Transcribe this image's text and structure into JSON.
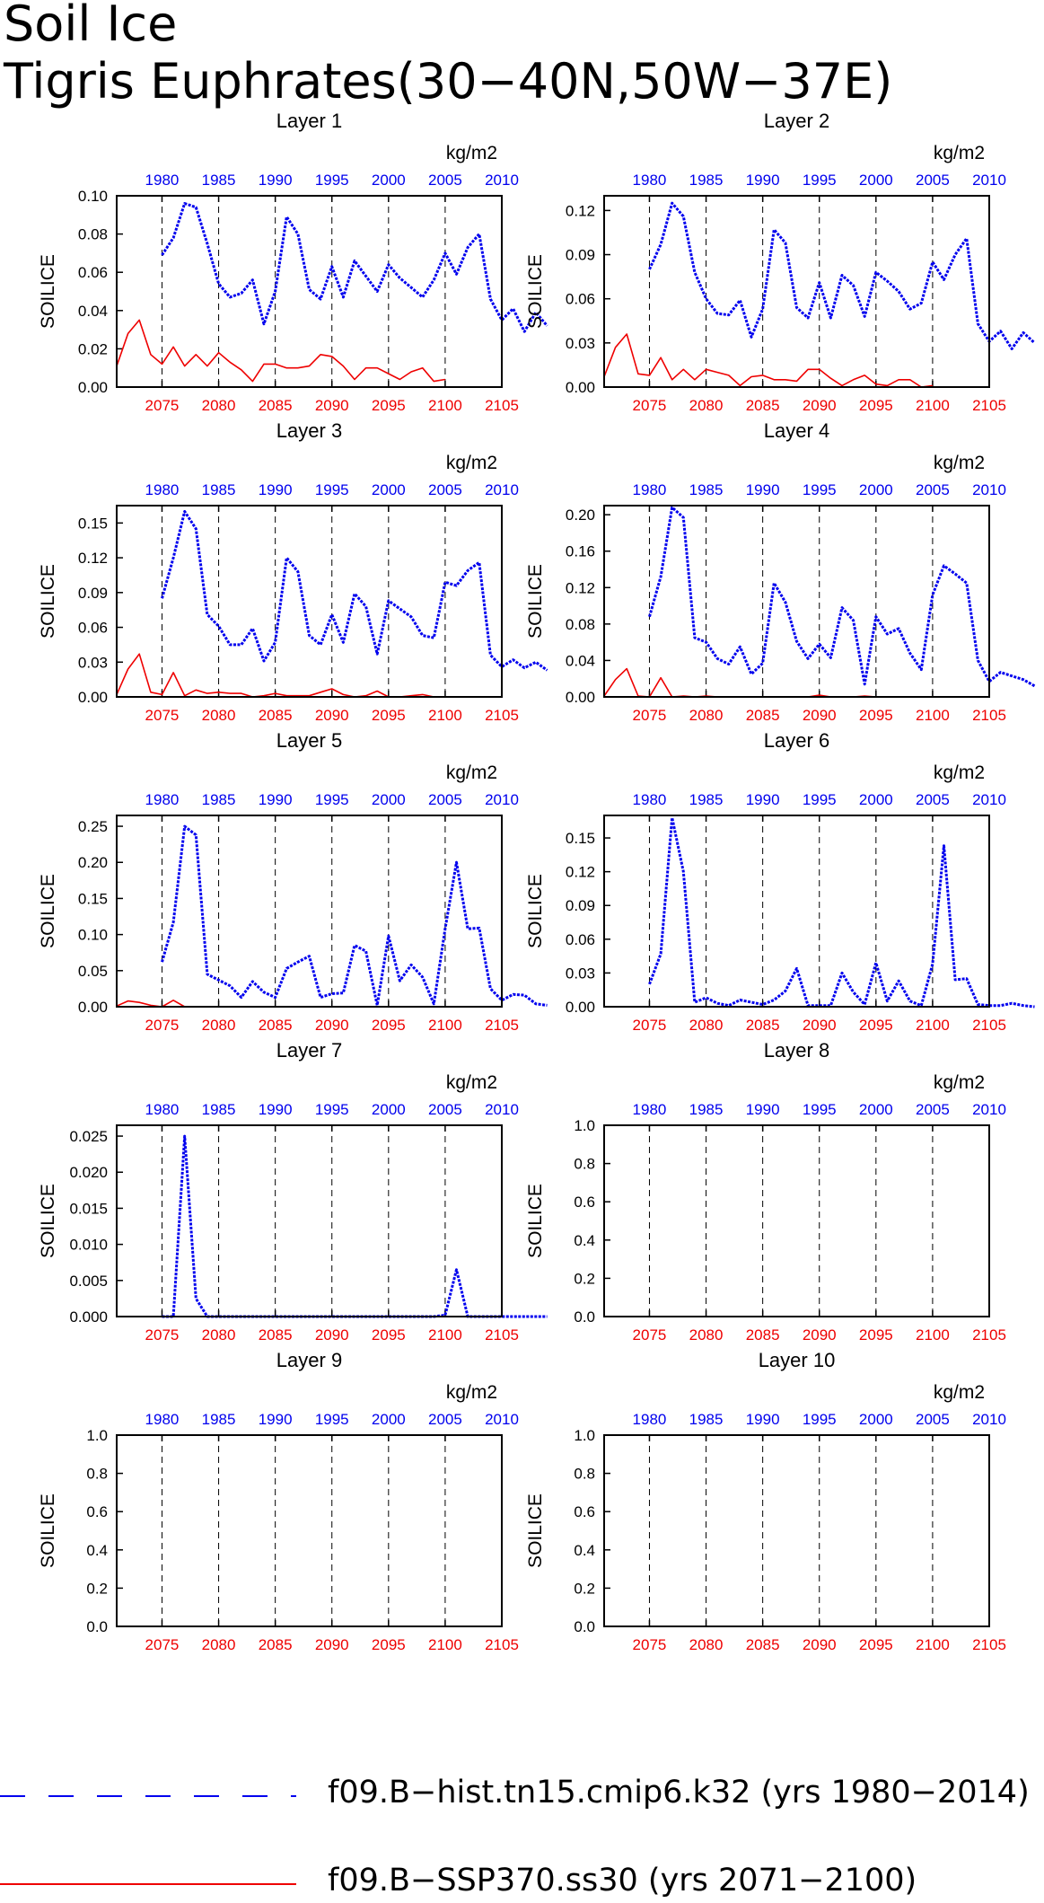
{
  "title_line1": "Soil Ice",
  "title_line2": "Tigris Euphrates(30−40N,50W−37E)",
  "legend": {
    "hist_label": "f09.B−hist.tn15.cmip6.k32 (yrs 1980−2014)",
    "ssp_label": "f09.B−SSP370.ss30 (yrs 2071−2100)",
    "hist_color": "#0000ee",
    "ssp_color": "#ee0000"
  },
  "chart_data": [
    {
      "type": "line",
      "title": "Layer 1",
      "ylabel": "SOILICE",
      "units": "kg/m2",
      "ylim": [
        0,
        0.1
      ],
      "yticks": [
        "0.00",
        "0.02",
        "0.04",
        "0.06",
        "0.08",
        "0.10"
      ],
      "top_axis": {
        "xlim": [
          1976,
          2010
        ],
        "ticks": [
          "1980",
          "1985",
          "1990",
          "1995",
          "2000",
          "2005",
          "2010"
        ]
      },
      "bottom_axis": {
        "xlim": [
          2071,
          2105
        ],
        "ticks": [
          "2075",
          "2080",
          "2085",
          "2090",
          "2095",
          "2100",
          "2105"
        ]
      },
      "series": [
        {
          "name": "f09.B−hist.tn15.cmip6.k32",
          "x_start": 1980,
          "values": [
            0.069,
            0.078,
            0.096,
            0.094,
            0.075,
            0.054,
            0.047,
            0.049,
            0.056,
            0.033,
            0.05,
            0.089,
            0.08,
            0.051,
            0.046,
            0.063,
            0.047,
            0.066,
            0.058,
            0.05,
            0.064,
            0.057,
            0.052,
            0.047,
            0.056,
            0.07,
            0.059,
            0.073,
            0.08,
            0.046,
            0.035,
            0.041,
            0.029,
            0.039,
            0.032
          ]
        },
        {
          "name": "f09.B−SSP370.ss30",
          "x_start": 2071,
          "values": [
            0.011,
            0.028,
            0.035,
            0.017,
            0.012,
            0.021,
            0.011,
            0.017,
            0.011,
            0.018,
            0.013,
            0.009,
            0.003,
            0.012,
            0.012,
            0.01,
            0.01,
            0.011,
            0.017,
            0.016,
            0.011,
            0.004,
            0.01,
            0.01,
            0.007,
            0.004,
            0.008,
            0.01,
            0.003,
            0.004
          ]
        }
      ]
    },
    {
      "type": "line",
      "title": "Layer 2",
      "ylabel": "SOILICE",
      "units": "kg/m2",
      "ylim": [
        0,
        0.13
      ],
      "yticks": [
        "0.00",
        "0.03",
        "0.06",
        "0.09",
        "0.12"
      ],
      "top_axis": {
        "xlim": [
          1976,
          2010
        ],
        "ticks": [
          "1980",
          "1985",
          "1990",
          "1995",
          "2000",
          "2005",
          "2010"
        ]
      },
      "bottom_axis": {
        "xlim": [
          2071,
          2105
        ],
        "ticks": [
          "2075",
          "2080",
          "2085",
          "2090",
          "2095",
          "2100",
          "2105"
        ]
      },
      "series": [
        {
          "name": "f09.B−hist.tn15.cmip6.k32",
          "x_start": 1980,
          "values": [
            0.08,
            0.097,
            0.125,
            0.116,
            0.078,
            0.06,
            0.05,
            0.049,
            0.059,
            0.034,
            0.053,
            0.107,
            0.098,
            0.054,
            0.047,
            0.071,
            0.047,
            0.076,
            0.069,
            0.048,
            0.078,
            0.072,
            0.065,
            0.053,
            0.057,
            0.085,
            0.073,
            0.09,
            0.101,
            0.043,
            0.031,
            0.038,
            0.026,
            0.037,
            0.03
          ]
        },
        {
          "name": "f09.B−SSP370.ss30",
          "x_start": 2071,
          "values": [
            0.007,
            0.027,
            0.036,
            0.009,
            0.008,
            0.02,
            0.005,
            0.012,
            0.005,
            0.012,
            0.01,
            0.008,
            0.001,
            0.007,
            0.008,
            0.005,
            0.005,
            0.004,
            0.012,
            0.012,
            0.006,
            0.001,
            0.005,
            0.008,
            0.002,
            0.001,
            0.005,
            0.005,
            0.0,
            0.001
          ]
        }
      ]
    },
    {
      "type": "line",
      "title": "Layer 3",
      "ylabel": "SOILICE",
      "units": "kg/m2",
      "ylim": [
        0,
        0.165
      ],
      "yticks": [
        "0.00",
        "0.03",
        "0.06",
        "0.09",
        "0.12",
        "0.15"
      ],
      "top_axis": {
        "xlim": [
          1976,
          2010
        ],
        "ticks": [
          "1980",
          "1985",
          "1990",
          "1995",
          "2000",
          "2005",
          "2010"
        ]
      },
      "bottom_axis": {
        "xlim": [
          2071,
          2105
        ],
        "ticks": [
          "2075",
          "2080",
          "2085",
          "2090",
          "2095",
          "2100",
          "2105"
        ]
      },
      "series": [
        {
          "name": "f09.B−hist.tn15.cmip6.k32",
          "x_start": 1980,
          "values": [
            0.085,
            0.12,
            0.16,
            0.145,
            0.071,
            0.061,
            0.045,
            0.045,
            0.059,
            0.031,
            0.047,
            0.12,
            0.108,
            0.053,
            0.045,
            0.071,
            0.047,
            0.089,
            0.078,
            0.037,
            0.083,
            0.076,
            0.069,
            0.053,
            0.051,
            0.099,
            0.096,
            0.109,
            0.116,
            0.036,
            0.026,
            0.032,
            0.025,
            0.03,
            0.023
          ]
        },
        {
          "name": "f09.B−SSP370.ss30",
          "x_start": 2071,
          "values": [
            0.002,
            0.024,
            0.037,
            0.004,
            0.002,
            0.021,
            0.001,
            0.006,
            0.003,
            0.004,
            0.003,
            0.003,
            0.0,
            0.001,
            0.003,
            0.001,
            0.001,
            0.001,
            0.004,
            0.007,
            0.002,
            0.0,
            0.001,
            0.005,
            0.0,
            0.0,
            0.001,
            0.002,
            0.0,
            0.0
          ]
        }
      ]
    },
    {
      "type": "line",
      "title": "Layer 4",
      "ylabel": "SOILICE",
      "units": "kg/m2",
      "ylim": [
        0,
        0.21
      ],
      "yticks": [
        "0.00",
        "0.04",
        "0.08",
        "0.12",
        "0.16",
        "0.20"
      ],
      "top_axis": {
        "xlim": [
          1976,
          2010
        ],
        "ticks": [
          "1980",
          "1985",
          "1990",
          "1995",
          "2000",
          "2005",
          "2010"
        ]
      },
      "bottom_axis": {
        "xlim": [
          2071,
          2105
        ],
        "ticks": [
          "2075",
          "2080",
          "2085",
          "2090",
          "2095",
          "2100",
          "2105"
        ]
      },
      "series": [
        {
          "name": "f09.B−hist.tn15.cmip6.k32",
          "x_start": 1980,
          "values": [
            0.088,
            0.132,
            0.208,
            0.197,
            0.065,
            0.06,
            0.042,
            0.036,
            0.055,
            0.025,
            0.037,
            0.125,
            0.104,
            0.061,
            0.042,
            0.058,
            0.043,
            0.098,
            0.084,
            0.014,
            0.088,
            0.069,
            0.075,
            0.048,
            0.03,
            0.112,
            0.144,
            0.135,
            0.125,
            0.04,
            0.017,
            0.027,
            0.023,
            0.019,
            0.012
          ]
        },
        {
          "name": "f09.B−SSP370.ss30",
          "x_start": 2071,
          "values": [
            0.001,
            0.019,
            0.031,
            0.001,
            0.0,
            0.021,
            0.0,
            0.001,
            0.0,
            0.001,
            0.0,
            0.0,
            0.0,
            0.0,
            0.0,
            0.0,
            0.0,
            0.0,
            0.0,
            0.002,
            0.0,
            0.0,
            0.0,
            0.001,
            0.0,
            0.0,
            0.0,
            0.0,
            0.0,
            0.0
          ]
        }
      ]
    },
    {
      "type": "line",
      "title": "Layer 5",
      "ylabel": "SOILICE",
      "units": "kg/m2",
      "ylim": [
        0,
        0.265
      ],
      "yticks": [
        "0.00",
        "0.05",
        "0.10",
        "0.15",
        "0.20",
        "0.25"
      ],
      "top_axis": {
        "xlim": [
          1976,
          2010
        ],
        "ticks": [
          "1980",
          "1985",
          "1990",
          "1995",
          "2000",
          "2005",
          "2010"
        ]
      },
      "bottom_axis": {
        "xlim": [
          2071,
          2105
        ],
        "ticks": [
          "2075",
          "2080",
          "2085",
          "2090",
          "2095",
          "2100",
          "2105"
        ]
      },
      "series": [
        {
          "name": "f09.B−hist.tn15.cmip6.k32",
          "x_start": 1980,
          "values": [
            0.062,
            0.117,
            0.25,
            0.238,
            0.045,
            0.037,
            0.029,
            0.013,
            0.035,
            0.02,
            0.013,
            0.053,
            0.062,
            0.07,
            0.013,
            0.018,
            0.019,
            0.085,
            0.077,
            0.002,
            0.098,
            0.036,
            0.058,
            0.041,
            0.004,
            0.108,
            0.2,
            0.108,
            0.109,
            0.025,
            0.009,
            0.017,
            0.016,
            0.004,
            0.002
          ]
        },
        {
          "name": "f09.B−SSP370.ss30",
          "x_start": 2071,
          "values": [
            0.001,
            0.008,
            0.006,
            0.002,
            0.0,
            0.009,
            0.0,
            0.0,
            0.0,
            0.0,
            0.0,
            0.0,
            0.0,
            0.0,
            0.0,
            0.0,
            0.0,
            0.0,
            0.0,
            0.0,
            0.0,
            0.0,
            0.0,
            0.0,
            0.0,
            0.0,
            0.0,
            0.0,
            0.0,
            0.0
          ]
        }
      ]
    },
    {
      "type": "line",
      "title": "Layer 6",
      "ylabel": "SOILICE",
      "units": "kg/m2",
      "ylim": [
        0,
        0.17
      ],
      "yticks": [
        "0.00",
        "0.03",
        "0.06",
        "0.09",
        "0.12",
        "0.15"
      ],
      "top_axis": {
        "xlim": [
          1976,
          2010
        ],
        "ticks": [
          "1980",
          "1985",
          "1990",
          "1995",
          "2000",
          "2005",
          "2010"
        ]
      },
      "bottom_axis": {
        "xlim": [
          2071,
          2105
        ],
        "ticks": [
          "2075",
          "2080",
          "2085",
          "2090",
          "2095",
          "2100",
          "2105"
        ]
      },
      "series": [
        {
          "name": "f09.B−hist.tn15.cmip6.k32",
          "x_start": 1980,
          "values": [
            0.02,
            0.047,
            0.168,
            0.12,
            0.004,
            0.008,
            0.003,
            0.001,
            0.006,
            0.004,
            0.002,
            0.006,
            0.014,
            0.034,
            0.001,
            0.001,
            0.001,
            0.03,
            0.013,
            0.002,
            0.039,
            0.005,
            0.023,
            0.005,
            0.001,
            0.038,
            0.143,
            0.024,
            0.025,
            0.002,
            0.001,
            0.001,
            0.003,
            0.001,
            0.0
          ]
        },
        {
          "name": "f09.B−SSP370.ss30",
          "x_start": 2071,
          "values": [
            0.0,
            0.0,
            0.0,
            0.0,
            0.0,
            0.0,
            0.0,
            0.0,
            0.0,
            0.0,
            0.0,
            0.0,
            0.0,
            0.0,
            0.0,
            0.0,
            0.0,
            0.0,
            0.0,
            0.0,
            0.0,
            0.0,
            0.0,
            0.0,
            0.0,
            0.0,
            0.0,
            0.0,
            0.0,
            0.0
          ]
        }
      ]
    },
    {
      "type": "line",
      "title": "Layer 7",
      "ylabel": "SOILICE",
      "units": "kg/m2",
      "ylim": [
        0,
        0.0265
      ],
      "yticks": [
        "0.000",
        "0.005",
        "0.010",
        "0.015",
        "0.020",
        "0.025"
      ],
      "top_axis": {
        "xlim": [
          1976,
          2010
        ],
        "ticks": [
          "1980",
          "1985",
          "1990",
          "1995",
          "2000",
          "2005",
          "2010"
        ]
      },
      "bottom_axis": {
        "xlim": [
          2071,
          2105
        ],
        "ticks": [
          "2075",
          "2080",
          "2085",
          "2090",
          "2095",
          "2100",
          "2105"
        ]
      },
      "series": [
        {
          "name": "f09.B−hist.tn15.cmip6.k32",
          "x_start": 1980,
          "values": [
            0.0,
            0.0,
            0.025,
            0.0025,
            0.0,
            0.0,
            0.0,
            0.0,
            0.0,
            0.0,
            0.0,
            0.0,
            0.0,
            0.0,
            0.0,
            0.0,
            0.0,
            0.0,
            0.0,
            0.0,
            0.0,
            0.0,
            0.0,
            0.0,
            0.0,
            0.0002,
            0.0065,
            0.0,
            0.0,
            0.0,
            0.0,
            0.0,
            0.0,
            0.0,
            0.0
          ]
        },
        {
          "name": "f09.B−SSP370.ss30",
          "x_start": 2071,
          "values": [
            0.0,
            0.0,
            0.0,
            0.0,
            0.0,
            0.0,
            0.0,
            0.0,
            0.0,
            0.0,
            0.0,
            0.0,
            0.0,
            0.0,
            0.0,
            0.0,
            0.0,
            0.0,
            0.0,
            0.0,
            0.0,
            0.0,
            0.0,
            0.0,
            0.0,
            0.0,
            0.0,
            0.0,
            0.0,
            0.0
          ]
        }
      ]
    },
    {
      "type": "line",
      "title": "Layer 8",
      "ylabel": "SOILICE",
      "units": "kg/m2",
      "ylim": [
        0,
        1.0
      ],
      "yticks": [
        "0.0",
        "0.2",
        "0.4",
        "0.6",
        "0.8",
        "1.0"
      ],
      "top_axis": {
        "xlim": [
          1976,
          2010
        ],
        "ticks": [
          "1980",
          "1985",
          "1990",
          "1995",
          "2000",
          "2005",
          "2010"
        ]
      },
      "bottom_axis": {
        "xlim": [
          2071,
          2105
        ],
        "ticks": [
          "2075",
          "2080",
          "2085",
          "2090",
          "2095",
          "2100",
          "2105"
        ]
      },
      "series": []
    },
    {
      "type": "line",
      "title": "Layer 9",
      "ylabel": "SOILICE",
      "units": "kg/m2",
      "ylim": [
        0,
        1.0
      ],
      "yticks": [
        "0.0",
        "0.2",
        "0.4",
        "0.6",
        "0.8",
        "1.0"
      ],
      "top_axis": {
        "xlim": [
          1976,
          2010
        ],
        "ticks": [
          "1980",
          "1985",
          "1990",
          "1995",
          "2000",
          "2005",
          "2010"
        ]
      },
      "bottom_axis": {
        "xlim": [
          2071,
          2105
        ],
        "ticks": [
          "2075",
          "2080",
          "2085",
          "2090",
          "2095",
          "2100",
          "2105"
        ]
      },
      "series": []
    },
    {
      "type": "line",
      "title": "Layer 10",
      "ylabel": "SOILICE",
      "units": "kg/m2",
      "ylim": [
        0,
        1.0
      ],
      "yticks": [
        "0.0",
        "0.2",
        "0.4",
        "0.6",
        "0.8",
        "1.0"
      ],
      "top_axis": {
        "xlim": [
          1976,
          2010
        ],
        "ticks": [
          "1980",
          "1985",
          "1990",
          "1995",
          "2000",
          "2005",
          "2010"
        ]
      },
      "bottom_axis": {
        "xlim": [
          2071,
          2105
        ],
        "ticks": [
          "2075",
          "2080",
          "2085",
          "2090",
          "2095",
          "2100",
          "2105"
        ]
      },
      "series": []
    }
  ]
}
